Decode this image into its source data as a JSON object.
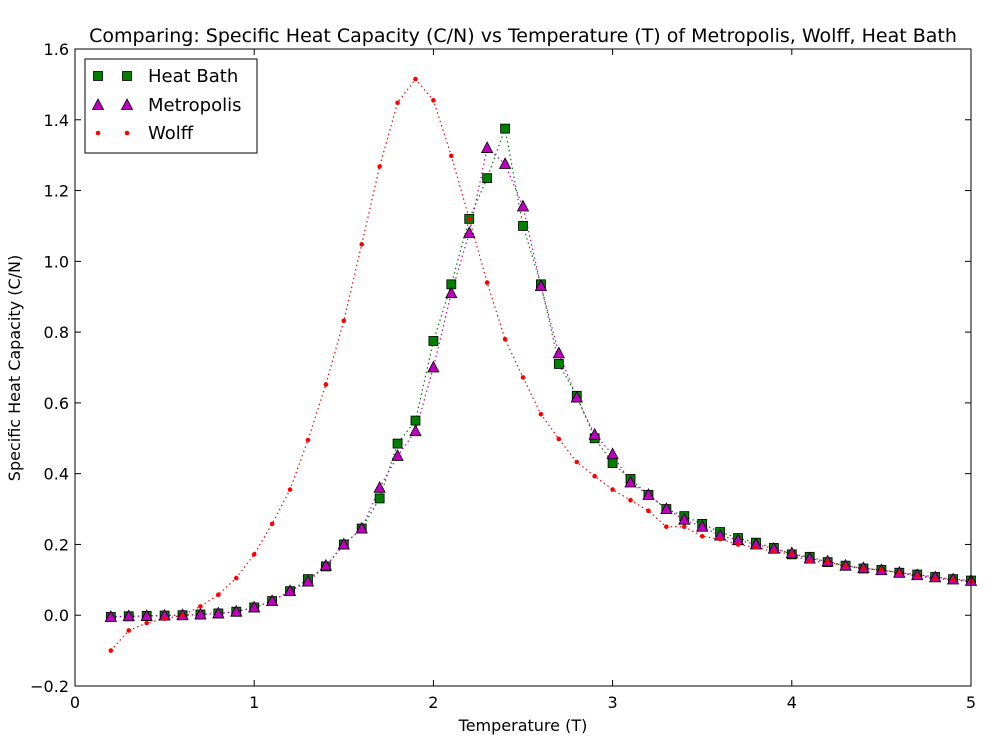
{
  "chart_data": {
    "type": "scatter",
    "title": "Comparing: Specific Heat Capacity (C/N) vs Temperature (T) of Metropolis, Wolff, Heat Bath",
    "xlabel": "Temperature (T)",
    "ylabel": "Specific Heat Capacity (C/N)",
    "xlim": [
      0,
      5
    ],
    "ylim": [
      -0.2,
      1.6
    ],
    "xticks": [
      0,
      1,
      2,
      3,
      4,
      5
    ],
    "yticks": [
      -0.2,
      0.0,
      0.2,
      0.4,
      0.6,
      0.8,
      1.0,
      1.2,
      1.4,
      1.6
    ],
    "xtick_labels": [
      "0",
      "1",
      "2",
      "3",
      "4",
      "5"
    ],
    "ytick_labels": [
      "−0.2",
      "0.0",
      "0.2",
      "0.4",
      "0.6",
      "0.8",
      "1.0",
      "1.2",
      "1.4",
      "1.6"
    ],
    "grid": false,
    "legend_position": "top-left",
    "series": [
      {
        "name": "Heat Bath",
        "marker": "square",
        "color": "#007f00",
        "x": [
          0.2,
          0.3,
          0.4,
          0.5,
          0.6,
          0.7,
          0.8,
          0.9,
          1.0,
          1.1,
          1.2,
          1.3,
          1.4,
          1.5,
          1.6,
          1.7,
          1.8,
          1.9,
          2.0,
          2.1,
          2.2,
          2.3,
          2.4,
          2.5,
          2.6,
          2.7,
          2.8,
          2.9,
          3.0,
          3.1,
          3.2,
          3.3,
          3.4,
          3.5,
          3.6,
          3.7,
          3.8,
          3.9,
          4.0,
          4.1,
          4.2,
          4.3,
          4.4,
          4.5,
          4.6,
          4.7,
          4.8,
          4.9,
          5.0
        ],
        "y": [
          -0.005,
          -0.003,
          -0.002,
          -0.001,
          0.0,
          0.002,
          0.005,
          0.01,
          0.022,
          0.04,
          0.068,
          0.102,
          0.138,
          0.2,
          0.245,
          0.33,
          0.485,
          0.55,
          0.775,
          0.935,
          1.12,
          1.235,
          1.375,
          1.1,
          0.935,
          0.71,
          0.62,
          0.5,
          0.43,
          0.385,
          0.34,
          0.3,
          0.28,
          0.258,
          0.235,
          0.218,
          0.205,
          0.19,
          0.172,
          0.165,
          0.15,
          0.14,
          0.132,
          0.128,
          0.12,
          0.115,
          0.108,
          0.102,
          0.098
        ]
      },
      {
        "name": "Metropolis",
        "marker": "triangle",
        "color": "#bf00bf",
        "x": [
          0.2,
          0.3,
          0.4,
          0.5,
          0.6,
          0.7,
          0.8,
          0.9,
          1.0,
          1.1,
          1.2,
          1.3,
          1.4,
          1.5,
          1.6,
          1.7,
          1.8,
          1.9,
          2.0,
          2.1,
          2.2,
          2.3,
          2.4,
          2.5,
          2.6,
          2.7,
          2.8,
          2.9,
          3.0,
          3.1,
          3.2,
          3.3,
          3.4,
          3.5,
          3.6,
          3.7,
          3.8,
          3.9,
          4.0,
          4.1,
          4.2,
          4.3,
          4.4,
          4.5,
          4.6,
          4.7,
          4.8,
          4.9,
          5.0
        ],
        "y": [
          -0.005,
          -0.003,
          -0.002,
          -0.001,
          0.0,
          0.002,
          0.005,
          0.01,
          0.022,
          0.04,
          0.068,
          0.095,
          0.14,
          0.2,
          0.245,
          0.36,
          0.45,
          0.52,
          0.7,
          0.91,
          1.08,
          1.32,
          1.275,
          1.155,
          0.93,
          0.74,
          0.615,
          0.51,
          0.455,
          0.375,
          0.34,
          0.3,
          0.27,
          0.25,
          0.225,
          0.212,
          0.2,
          0.188,
          0.175,
          0.16,
          0.152,
          0.14,
          0.133,
          0.127,
          0.12,
          0.113,
          0.107,
          0.101,
          0.097
        ]
      },
      {
        "name": "Wolff",
        "marker": "dot",
        "color": "#ff0000",
        "x": [
          0.2,
          0.3,
          0.4,
          0.5,
          0.6,
          0.7,
          0.8,
          0.9,
          1.0,
          1.1,
          1.2,
          1.3,
          1.4,
          1.5,
          1.6,
          1.7,
          1.8,
          1.9,
          2.0,
          2.1,
          2.2,
          2.3,
          2.4,
          2.5,
          2.6,
          2.7,
          2.8,
          2.9,
          3.0,
          3.1,
          3.2,
          3.3,
          3.4,
          3.5,
          3.6,
          3.7,
          3.8,
          3.9,
          4.0,
          4.1,
          4.2,
          4.3,
          4.4,
          4.5,
          4.6,
          4.7,
          4.8,
          4.9,
          5.0
        ],
        "y": [
          -0.1,
          -0.043,
          -0.022,
          -0.01,
          0.0,
          0.025,
          0.058,
          0.105,
          0.172,
          0.258,
          0.355,
          0.495,
          0.652,
          0.832,
          1.048,
          1.268,
          1.448,
          1.515,
          1.455,
          1.298,
          1.12,
          0.94,
          0.78,
          0.672,
          0.568,
          0.498,
          0.433,
          0.393,
          0.355,
          0.325,
          0.295,
          0.25,
          0.25,
          0.223,
          0.215,
          0.2,
          0.192,
          0.18,
          0.172,
          0.152,
          0.15,
          0.138,
          0.132,
          0.128,
          0.12,
          0.11,
          0.103,
          0.1,
          0.095
        ]
      }
    ]
  }
}
